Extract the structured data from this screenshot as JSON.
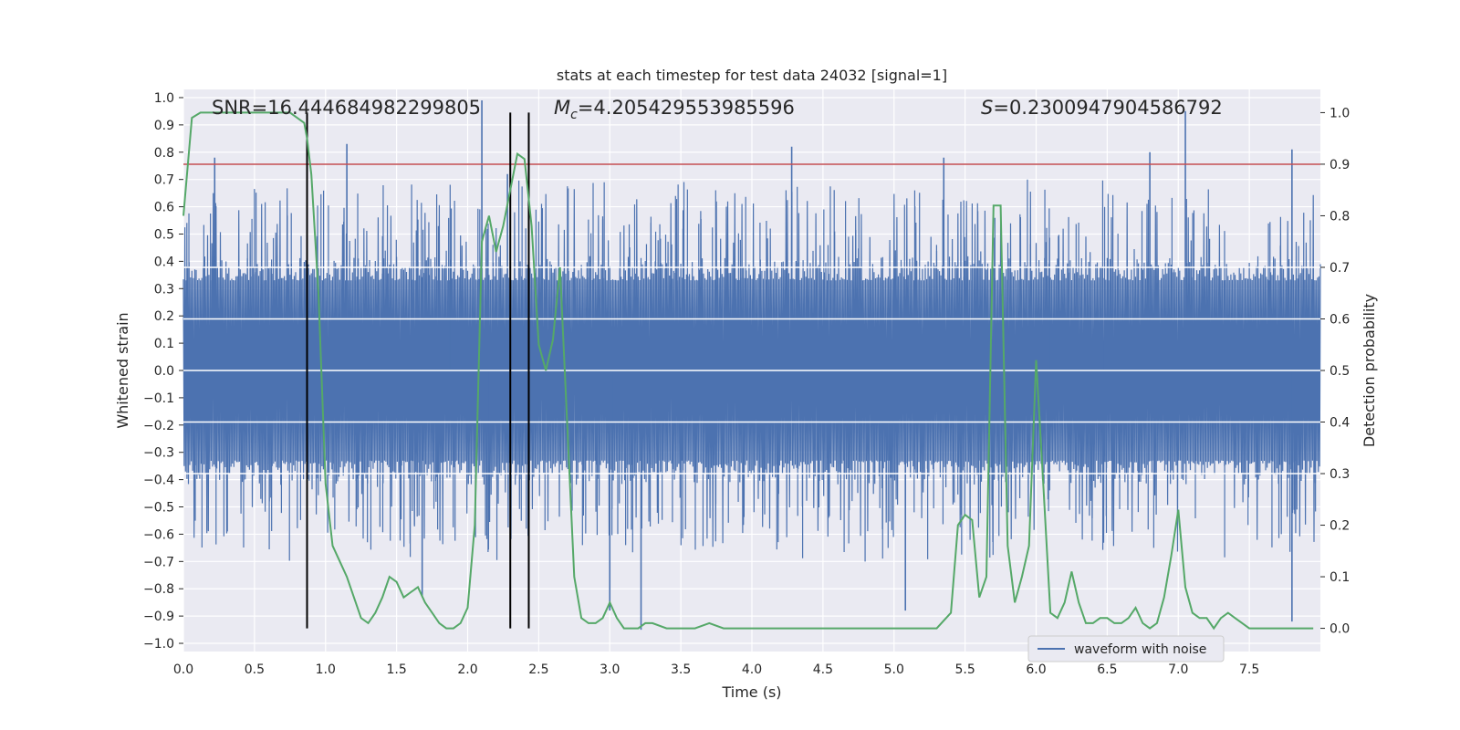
{
  "chart_data": {
    "type": "line",
    "title": "stats at each timestep for test data 24032 [signal=1]",
    "xlabel": "Time (s)",
    "ylabel_left": "Whitened strain",
    "ylabel_right": "Detection probability",
    "xlim": [
      0.0,
      8.0
    ],
    "ylim_left": [
      -1.03,
      1.03
    ],
    "ylim_right": [
      -0.045,
      1.045
    ],
    "x_ticks": [
      "0.0",
      "0.5",
      "1.0",
      "1.5",
      "2.0",
      "2.5",
      "3.0",
      "3.5",
      "4.0",
      "4.5",
      "5.0",
      "5.5",
      "6.0",
      "6.5",
      "7.0",
      "7.5"
    ],
    "y_ticks_left": [
      "1.0",
      "0.9",
      "0.8",
      "0.7",
      "0.6",
      "0.5",
      "0.4",
      "0.3",
      "0.2",
      "0.1",
      "0.0",
      "−0.1",
      "−0.2",
      "−0.3",
      "−0.4",
      "−0.5",
      "−0.6",
      "−0.7",
      "−0.8",
      "−0.9",
      "−1.0"
    ],
    "y_ticks_right": [
      "1.0",
      "0.9",
      "0.8",
      "0.7",
      "0.6",
      "0.5",
      "0.4",
      "0.3",
      "0.2",
      "0.1",
      "0.0"
    ],
    "annotations": {
      "snr": "SNR=16.444684982299805",
      "mc_symbol": "M",
      "mc_sub": "c",
      "mc_value": "=4.205429553985596",
      "s_symbol": "S",
      "s_value": "=0.2300947904586792"
    },
    "threshold": {
      "value": 0.9,
      "axis": "right",
      "color": "#c44e52"
    },
    "vertical_markers": [
      0.87,
      2.3,
      2.43
    ],
    "waveform": {
      "name": "waveform with noise",
      "color": "#4c72b0",
      "envelope": "noise band roughly ±0.35 with peaks to ±0.8",
      "peaks": [
        {
          "t": 0.22,
          "v": 0.78
        },
        {
          "t": 1.15,
          "v": 0.83
        },
        {
          "t": 2.1,
          "v": 0.99
        },
        {
          "t": 2.28,
          "v": 0.72
        },
        {
          "t": 4.28,
          "v": 0.82
        },
        {
          "t": 5.35,
          "v": 0.78
        },
        {
          "t": 6.8,
          "v": 0.8
        },
        {
          "t": 7.05,
          "v": 0.95
        },
        {
          "t": 7.8,
          "v": 0.81
        },
        {
          "t": 1.68,
          "v": -0.83
        },
        {
          "t": 3.0,
          "v": -0.88
        },
        {
          "t": 3.22,
          "v": -0.95
        },
        {
          "t": 5.08,
          "v": -0.88
        },
        {
          "t": 7.8,
          "v": -0.92
        }
      ]
    },
    "detection_probability": {
      "color": "#55a868",
      "t": [
        0.0,
        0.06,
        0.12,
        0.2,
        0.3,
        0.4,
        0.5,
        0.6,
        0.7,
        0.75,
        0.8,
        0.85,
        0.87,
        0.9,
        0.95,
        1.0,
        1.05,
        1.1,
        1.15,
        1.2,
        1.25,
        1.3,
        1.35,
        1.4,
        1.45,
        1.5,
        1.55,
        1.6,
        1.65,
        1.7,
        1.75,
        1.8,
        1.85,
        1.9,
        1.95,
        2.0,
        2.05,
        2.1,
        2.15,
        2.2,
        2.25,
        2.3,
        2.35,
        2.4,
        2.45,
        2.5,
        2.55,
        2.6,
        2.65,
        2.7,
        2.75,
        2.8,
        2.85,
        2.9,
        2.95,
        3.0,
        3.05,
        3.1,
        3.15,
        3.2,
        3.25,
        3.3,
        3.4,
        3.5,
        3.6,
        3.7,
        3.8,
        3.9,
        4.0,
        4.2,
        4.4,
        4.6,
        4.8,
        5.0,
        5.1,
        5.2,
        5.3,
        5.4,
        5.45,
        5.5,
        5.55,
        5.6,
        5.65,
        5.7,
        5.75,
        5.8,
        5.85,
        5.9,
        5.95,
        6.0,
        6.05,
        6.1,
        6.15,
        6.2,
        6.25,
        6.3,
        6.35,
        6.4,
        6.45,
        6.5,
        6.55,
        6.6,
        6.65,
        6.7,
        6.75,
        6.8,
        6.85,
        6.9,
        6.95,
        7.0,
        7.05,
        7.1,
        7.15,
        7.2,
        7.25,
        7.3,
        7.35,
        7.4,
        7.45,
        7.5,
        7.55,
        7.6,
        7.65,
        7.7,
        7.75,
        7.8,
        7.9,
        7.95
      ],
      "p": [
        0.8,
        0.99,
        1.0,
        1.0,
        1.0,
        1.0,
        1.0,
        1.0,
        1.0,
        1.0,
        0.99,
        0.98,
        0.95,
        0.88,
        0.65,
        0.28,
        0.16,
        0.13,
        0.1,
        0.06,
        0.02,
        0.01,
        0.03,
        0.06,
        0.1,
        0.09,
        0.06,
        0.07,
        0.08,
        0.05,
        0.03,
        0.01,
        0.0,
        0.0,
        0.01,
        0.04,
        0.2,
        0.75,
        0.8,
        0.73,
        0.78,
        0.85,
        0.92,
        0.91,
        0.78,
        0.55,
        0.5,
        0.56,
        0.7,
        0.4,
        0.1,
        0.02,
        0.01,
        0.01,
        0.02,
        0.05,
        0.02,
        0.0,
        0.0,
        0.0,
        0.01,
        0.01,
        0.0,
        0.0,
        0.0,
        0.01,
        0.0,
        0.0,
        0.0,
        0.0,
        0.0,
        0.0,
        0.0,
        0.0,
        0.0,
        0.0,
        0.0,
        0.03,
        0.2,
        0.22,
        0.21,
        0.06,
        0.1,
        0.82,
        0.82,
        0.16,
        0.05,
        0.1,
        0.16,
        0.52,
        0.28,
        0.03,
        0.02,
        0.05,
        0.11,
        0.05,
        0.01,
        0.01,
        0.02,
        0.02,
        0.01,
        0.01,
        0.02,
        0.04,
        0.01,
        0.0,
        0.01,
        0.06,
        0.14,
        0.23,
        0.08,
        0.03,
        0.02,
        0.02,
        0.0,
        0.02,
        0.03,
        0.02,
        0.01,
        0.0,
        0.0,
        0.0,
        0.0,
        0.0,
        0.0,
        0.0,
        0.0,
        0.0
      ]
    }
  }
}
